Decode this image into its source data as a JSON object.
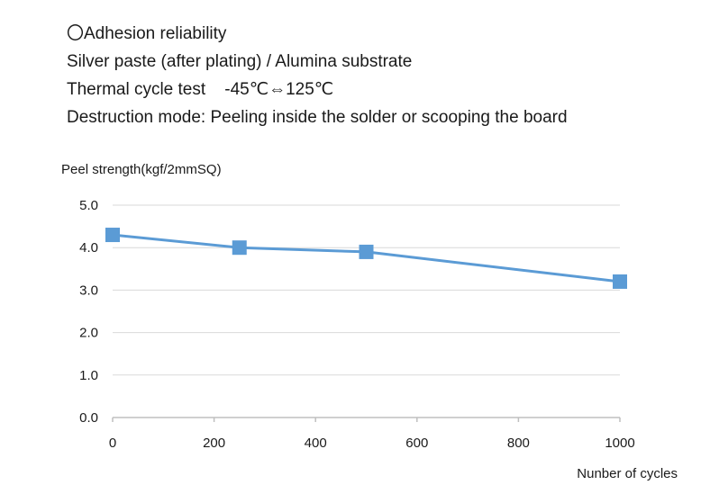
{
  "header": {
    "lines": [
      "〇Adhesion reliability",
      "Silver paste (after plating) / Alumina substrate",
      "Thermal cycle test    -45℃⇔125℃",
      "Destruction mode: Peeling inside the solder or scooping the board"
    ]
  },
  "chart_data": {
    "type": "line",
    "title": "",
    "ylabel": "Peel strength(kgf/2mmSQ)",
    "xlabel": "Nunber of cycles",
    "xlim": [
      0,
      1000
    ],
    "ylim": [
      0,
      5
    ],
    "xticks": [
      0,
      200,
      400,
      600,
      800,
      1000
    ],
    "yticks": [
      "0.0",
      "1.0",
      "2.0",
      "3.0",
      "4.0",
      "5.0"
    ],
    "grid": true,
    "series": [
      {
        "color": "#5b9bd5",
        "points": [
          {
            "x": 0,
            "y": 4.3
          },
          {
            "x": 250,
            "y": 4.0
          },
          {
            "x": 500,
            "y": 3.9
          },
          {
            "x": 1000,
            "y": 3.2
          }
        ]
      }
    ]
  }
}
